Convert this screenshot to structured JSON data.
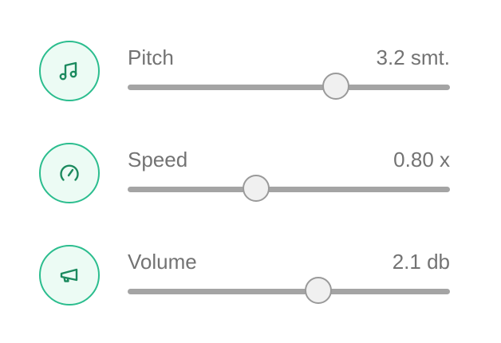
{
  "accent_color": "#2bbd8e",
  "icon_bg_color": "#ecfbf4",
  "sliders": [
    {
      "id": "pitch",
      "label": "Pitch",
      "value_text": "3.2 smt.",
      "icon": "music-note-icon",
      "fraction": 0.645
    },
    {
      "id": "speed",
      "label": "Speed",
      "value_text": "0.80 x",
      "icon": "speedometer-icon",
      "fraction": 0.398
    },
    {
      "id": "volume",
      "label": "Volume",
      "value_text": "2.1 db",
      "icon": "megaphone-icon",
      "fraction": 0.592
    }
  ]
}
